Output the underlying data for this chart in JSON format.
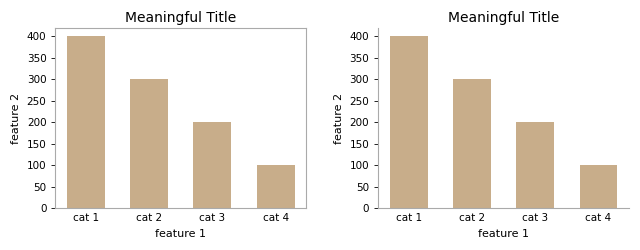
{
  "categories": [
    "cat 1",
    "cat 2",
    "cat 3",
    "cat 4"
  ],
  "values": [
    400,
    300,
    200,
    100
  ],
  "bar_color": "#C8AD8A",
  "title": "Meaningful Title",
  "xlabel": "feature 1",
  "ylabel": "feature 2",
  "ylim": [
    0,
    420
  ],
  "yticks": [
    0,
    50,
    100,
    150,
    200,
    250,
    300,
    350,
    400
  ],
  "title_fontsize": 10,
  "label_fontsize": 8,
  "tick_fontsize": 7.5,
  "background_color": "#ffffff",
  "spine_color": "#aaaaaa"
}
